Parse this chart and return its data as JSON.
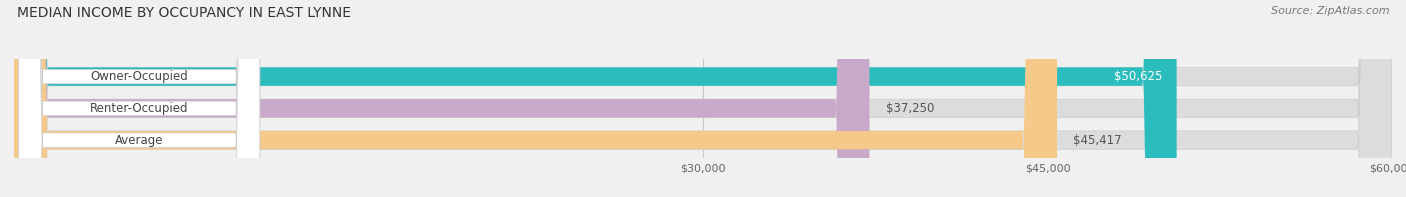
{
  "title": "MEDIAN INCOME BY OCCUPANCY IN EAST LYNNE",
  "source": "Source: ZipAtlas.com",
  "categories": [
    "Owner-Occupied",
    "Renter-Occupied",
    "Average"
  ],
  "values": [
    50625,
    37250,
    45417
  ],
  "bar_colors": [
    "#2bbcbe",
    "#c9a9c9",
    "#f5c98a"
  ],
  "value_labels": [
    "$50,625",
    "$37,250",
    "$45,417"
  ],
  "value_label_colors": [
    "#ffffff",
    "#555555",
    "#555555"
  ],
  "xlim": [
    0,
    60000
  ],
  "xticks": [
    30000,
    45000,
    60000
  ],
  "xtick_labels": [
    "$30,000",
    "$45,000",
    "$60,000"
  ],
  "title_fontsize": 10,
  "source_fontsize": 8,
  "bar_height": 0.58,
  "figsize": [
    14.06,
    1.97
  ],
  "dpi": 100,
  "background_color": "#f0f0f0",
  "bar_bg_color": "#dcdcdc",
  "grid_color": "#c8c8c8",
  "label_bg_color": "#ffffff",
  "label_text_color": "#444444"
}
